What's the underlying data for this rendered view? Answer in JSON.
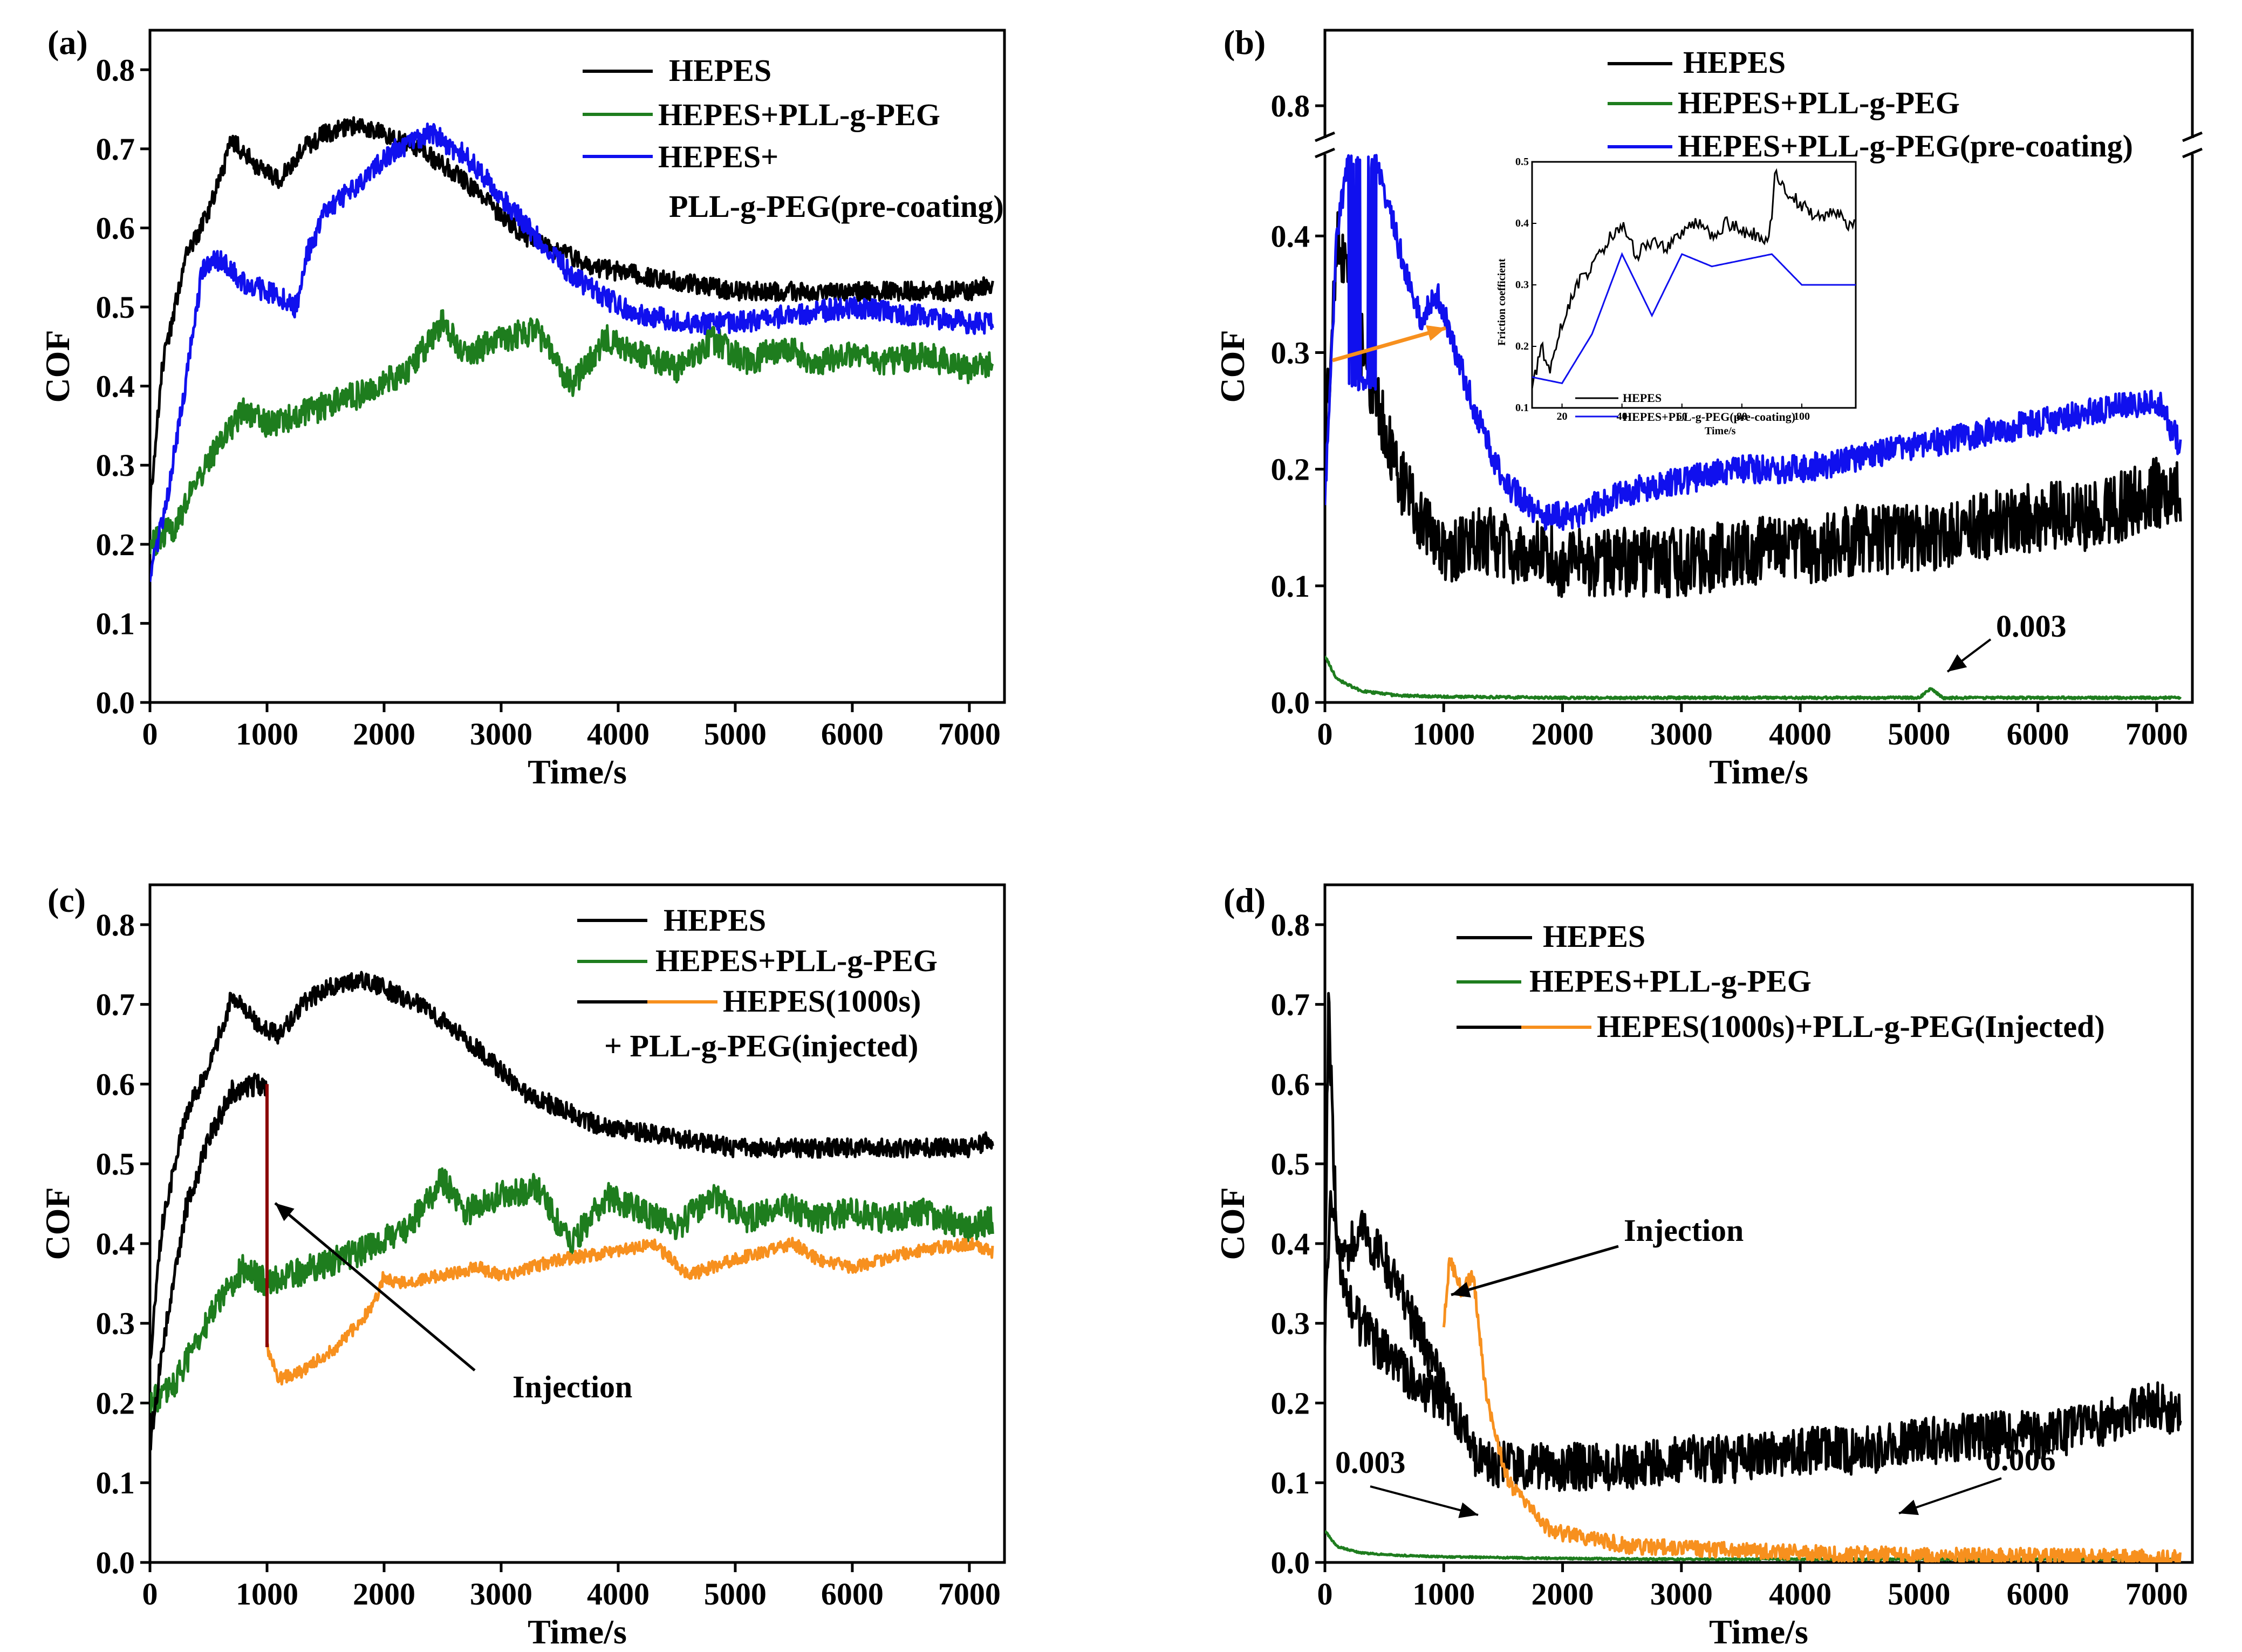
{
  "figure": {
    "colors": {
      "HEPES": "#000000",
      "PLL": "#1e7d1e",
      "precoat": "#1010ee",
      "injected": "#f7901e",
      "inj_marker": "#8b0000",
      "inset_arrow": "#f7901e"
    }
  },
  "chart_data": [
    {
      "panel": "(a)",
      "type": "line",
      "xlabel": "Time/s",
      "ylabel": "COF",
      "xlim": [
        0,
        7300
      ],
      "ylim": [
        0,
        0.85
      ],
      "xticks": [
        0,
        1000,
        2000,
        3000,
        4000,
        5000,
        6000,
        7000
      ],
      "yticks": [
        0.0,
        0.1,
        0.2,
        0.3,
        0.4,
        0.5,
        0.6,
        0.7,
        0.8
      ],
      "legend": [
        "HEPES",
        "HEPES+PLL-g-PEG",
        "HEPES+",
        "PLL-g-PEG(pre-coating)"
      ],
      "series": [
        {
          "name": "HEPES",
          "color": "#000000",
          "noise": 0.012,
          "seed": 1,
          "x": [
            0,
            100,
            300,
            500,
            700,
            900,
            1100,
            1300,
            1500,
            1800,
            2000,
            2300,
            2600,
            2900,
            3200,
            3500,
            3800,
            4200,
            4600,
            5000,
            5500,
            6000,
            6500,
            7000,
            7200
          ],
          "y": [
            0.25,
            0.42,
            0.56,
            0.62,
            0.71,
            0.68,
            0.66,
            0.7,
            0.72,
            0.73,
            0.72,
            0.7,
            0.67,
            0.63,
            0.59,
            0.57,
            0.55,
            0.54,
            0.53,
            0.52,
            0.52,
            0.52,
            0.52,
            0.52,
            0.53
          ]
        },
        {
          "name": "HEPES+PLL-g-PEG",
          "color": "#1e7d1e",
          "noise": 0.018,
          "seed": 2,
          "x": [
            0,
            200,
            400,
            600,
            800,
            1000,
            1400,
            1800,
            2200,
            2500,
            2700,
            3000,
            3300,
            3600,
            3900,
            4200,
            4500,
            4800,
            5100,
            5400,
            5700,
            6000,
            6300,
            6600,
            7000,
            7200
          ],
          "y": [
            0.2,
            0.22,
            0.28,
            0.33,
            0.37,
            0.35,
            0.37,
            0.39,
            0.42,
            0.48,
            0.44,
            0.46,
            0.47,
            0.4,
            0.46,
            0.44,
            0.42,
            0.46,
            0.43,
            0.45,
            0.43,
            0.44,
            0.43,
            0.44,
            0.42,
            0.43
          ]
        },
        {
          "name": "HEPES+PLL-g-PEG(pre-coating)",
          "color": "#1010ee",
          "noise": 0.014,
          "seed": 3,
          "x": [
            0,
            150,
            300,
            450,
            600,
            800,
            1000,
            1250,
            1350,
            1500,
            1800,
            2100,
            2400,
            2700,
            3000,
            3300,
            3600,
            3900,
            4200,
            4600,
            5000,
            5500,
            6000,
            6500,
            7000,
            7200
          ],
          "y": [
            0.16,
            0.26,
            0.4,
            0.55,
            0.56,
            0.53,
            0.52,
            0.5,
            0.57,
            0.62,
            0.66,
            0.7,
            0.72,
            0.69,
            0.64,
            0.59,
            0.54,
            0.51,
            0.49,
            0.48,
            0.48,
            0.49,
            0.5,
            0.49,
            0.48,
            0.48
          ]
        }
      ]
    },
    {
      "panel": "(b)",
      "type": "line",
      "xlabel": "Time/s",
      "ylabel": "COF",
      "xlim": [
        0,
        7300
      ],
      "ylim": [
        0,
        0.85
      ],
      "axis_break": [
        0.47,
        0.77
      ],
      "xticks": [
        0,
        1000,
        2000,
        3000,
        4000,
        5000,
        6000,
        7000
      ],
      "yticks": [
        0.0,
        0.1,
        0.2,
        0.3,
        0.4,
        0.8
      ],
      "legend": [
        "HEPES",
        "HEPES+PLL-g-PEG",
        "HEPES+PLL-g-PEG(pre-coating)"
      ],
      "annotation": "0.003",
      "series": [
        {
          "name": "HEPES",
          "color": "#000000",
          "noise": 0.03,
          "seed": 4,
          "x": [
            0,
            100,
            200,
            400,
            600,
            800,
            1000,
            1300,
            1600,
            2000,
            2500,
            3000,
            3500,
            4000,
            4500,
            5000,
            5500,
            6000,
            6500,
            7000,
            7200
          ],
          "y": [
            0.22,
            0.4,
            0.35,
            0.27,
            0.2,
            0.16,
            0.13,
            0.14,
            0.13,
            0.12,
            0.12,
            0.12,
            0.13,
            0.13,
            0.14,
            0.14,
            0.15,
            0.16,
            0.16,
            0.18,
            0.18
          ]
        },
        {
          "name": "HEPES+PLL-g-PEG",
          "color": "#1e7d1e",
          "noise": 0.001,
          "seed": 5,
          "x": [
            0,
            100,
            300,
            600,
            1000,
            2000,
            3000,
            4000,
            5000,
            5100,
            5200,
            6000,
            7000,
            7200
          ],
          "y": [
            0.04,
            0.02,
            0.01,
            0.006,
            0.005,
            0.004,
            0.004,
            0.004,
            0.004,
            0.012,
            0.004,
            0.004,
            0.004,
            0.004
          ]
        },
        {
          "name": "HEPES+PLL-g-PEG(pre-coating)",
          "color": "#1010ee",
          "noise": 0.012,
          "seed": 6,
          "x": [
            0,
            100,
            200,
            350,
            500,
            650,
            800,
            950,
            1100,
            1300,
            1500,
            1800,
            2100,
            2500,
            3000,
            3500,
            4000,
            4500,
            5000,
            5500,
            6000,
            6500,
            7000,
            7200
          ],
          "y": [
            0.17,
            0.4,
            0.47,
            0.48,
            0.44,
            0.38,
            0.33,
            0.35,
            0.3,
            0.24,
            0.19,
            0.16,
            0.16,
            0.18,
            0.19,
            0.2,
            0.2,
            0.21,
            0.22,
            0.23,
            0.24,
            0.25,
            0.26,
            0.22
          ]
        }
      ],
      "inset": {
        "ylabel": "Friction coefficient",
        "xlabel": "Time/s",
        "xlim": [
          10,
          118
        ],
        "ylim": [
          0.1,
          0.5
        ],
        "xticks": [
          20,
          40,
          60,
          80,
          100
        ],
        "yticks": [
          0.1,
          0.2,
          0.3,
          0.4,
          0.5
        ],
        "legend": [
          "HEPES",
          "HEPES+PLL-g-PEG(pre-coating)"
        ],
        "series": [
          {
            "name": "HEPES",
            "color": "#000000",
            "noise": 0.012,
            "seed": 7,
            "x": [
              10,
              13,
              16,
              20,
              25,
              30,
              35,
              40,
              45,
              50,
              55,
              60,
              65,
              70,
              75,
              80,
              85,
              88,
              90,
              91,
              95,
              100,
              105,
              110,
              115,
              118
            ],
            "y": [
              0.13,
              0.2,
              0.16,
              0.24,
              0.3,
              0.33,
              0.37,
              0.4,
              0.35,
              0.37,
              0.36,
              0.39,
              0.4,
              0.38,
              0.4,
              0.39,
              0.38,
              0.37,
              0.4,
              0.49,
              0.45,
              0.43,
              0.41,
              0.42,
              0.4,
              0.4
            ]
          },
          {
            "name": "HEPES+PLL-g-PEG(pre-coating)",
            "color": "#1010ee",
            "noise": 0,
            "seed": 8,
            "x": [
              10,
              20,
              30,
              40,
              50,
              60,
              70,
              80,
              90,
              100,
              110,
              118
            ],
            "y": [
              0.15,
              0.14,
              0.22,
              0.35,
              0.25,
              0.35,
              0.33,
              0.34,
              0.35,
              0.3,
              0.3,
              0.3
            ]
          }
        ]
      }
    },
    {
      "panel": "(c)",
      "type": "line",
      "xlabel": "Time/s",
      "ylabel": "COF",
      "xlim": [
        0,
        7300
      ],
      "ylim": [
        0,
        0.85
      ],
      "xticks": [
        0,
        1000,
        2000,
        3000,
        4000,
        5000,
        6000,
        7000
      ],
      "yticks": [
        0.0,
        0.1,
        0.2,
        0.3,
        0.4,
        0.5,
        0.6,
        0.7,
        0.8
      ],
      "legend": [
        "HEPES",
        "HEPES+PLL-g-PEG",
        "HEPES(1000s)",
        "+ PLL-g-PEG(injected)"
      ],
      "annotation": "Injection",
      "series": [
        {
          "name": "HEPES",
          "color": "#000000",
          "noise": 0.012,
          "seed": 9,
          "x": [
            0,
            100,
            300,
            500,
            700,
            900,
            1100,
            1300,
            1500,
            1800,
            2000,
            2300,
            2600,
            2900,
            3200,
            3500,
            3800,
            4200,
            4600,
            5000,
            5500,
            6000,
            6500,
            7000,
            7200
          ],
          "y": [
            0.25,
            0.42,
            0.56,
            0.62,
            0.71,
            0.68,
            0.66,
            0.7,
            0.72,
            0.73,
            0.72,
            0.7,
            0.67,
            0.63,
            0.59,
            0.57,
            0.55,
            0.54,
            0.53,
            0.52,
            0.52,
            0.52,
            0.52,
            0.52,
            0.53
          ]
        },
        {
          "name": "HEPES+PLL-g-PEG",
          "color": "#1e7d1e",
          "noise": 0.018,
          "seed": 10,
          "x": [
            0,
            200,
            400,
            600,
            800,
            1000,
            1400,
            1800,
            2200,
            2500,
            2700,
            3000,
            3300,
            3600,
            3900,
            4200,
            4500,
            4800,
            5100,
            5400,
            5700,
            6000,
            6300,
            6600,
            7000,
            7200
          ],
          "y": [
            0.2,
            0.22,
            0.28,
            0.33,
            0.37,
            0.35,
            0.37,
            0.39,
            0.42,
            0.48,
            0.44,
            0.46,
            0.47,
            0.4,
            0.46,
            0.44,
            0.42,
            0.46,
            0.43,
            0.45,
            0.43,
            0.44,
            0.43,
            0.44,
            0.42,
            0.43
          ]
        },
        {
          "name": "HEPES(1000s)",
          "color": "#000000",
          "noise": 0.015,
          "seed": 11,
          "x": [
            0,
            100,
            200,
            300,
            500,
            700,
            900,
            1000
          ],
          "y": [
            0.15,
            0.26,
            0.35,
            0.44,
            0.53,
            0.59,
            0.6,
            0.6
          ]
        },
        {
          "name": "PLL-g-PEG(injected)",
          "color": "#f7901e",
          "noise": 0.008,
          "seed": 12,
          "x": [
            1000,
            1100,
            1300,
            1600,
            1900,
            2000,
            2100,
            2500,
            2800,
            3000,
            3500,
            4000,
            4300,
            4600,
            5000,
            5500,
            5700,
            6000,
            6500,
            7000,
            7200
          ],
          "y": [
            0.27,
            0.23,
            0.24,
            0.27,
            0.32,
            0.36,
            0.35,
            0.36,
            0.37,
            0.36,
            0.38,
            0.39,
            0.4,
            0.36,
            0.38,
            0.4,
            0.38,
            0.37,
            0.39,
            0.4,
            0.39
          ]
        }
      ]
    },
    {
      "panel": "(d)",
      "type": "line",
      "xlabel": "Time/s",
      "ylabel": "COF",
      "xlim": [
        0,
        7300
      ],
      "ylim": [
        0,
        0.85
      ],
      "xticks": [
        0,
        1000,
        2000,
        3000,
        4000,
        5000,
        6000,
        7000
      ],
      "yticks": [
        0.0,
        0.1,
        0.2,
        0.3,
        0.4,
        0.5,
        0.6,
        0.7,
        0.8
      ],
      "legend": [
        "HEPES",
        "HEPES+PLL-g-PEG",
        "HEPES(1000s)+PLL-g-PEG(Injected)"
      ],
      "annotations": [
        "Injection",
        "0.003",
        "0.006"
      ],
      "series": [
        {
          "name": "HEPES",
          "color": "#000000",
          "noise": 0.03,
          "seed": 13,
          "x": [
            0,
            50,
            150,
            300,
            500,
            700,
            900,
            1100,
            1300,
            1600,
            2000,
            2500,
            3000,
            3500,
            4000,
            4500,
            5000,
            5500,
            6000,
            6500,
            7000,
            7200
          ],
          "y": [
            0.3,
            0.45,
            0.38,
            0.42,
            0.38,
            0.32,
            0.25,
            0.18,
            0.13,
            0.12,
            0.12,
            0.12,
            0.13,
            0.13,
            0.14,
            0.14,
            0.15,
            0.16,
            0.16,
            0.17,
            0.2,
            0.18
          ]
        },
        {
          "name": "HEPES+PLL-g-PEG",
          "color": "#1e7d1e",
          "noise": 0.001,
          "seed": 14,
          "x": [
            0,
            100,
            300,
            600,
            1000,
            2000,
            3000,
            4000,
            5000,
            6000,
            7000,
            7200
          ],
          "y": [
            0.04,
            0.02,
            0.012,
            0.009,
            0.007,
            0.005,
            0.004,
            0.004,
            0.004,
            0.004,
            0.004,
            0.004
          ]
        },
        {
          "name": "HEPES(1000s)",
          "color": "#000000",
          "noise": 0.03,
          "seed": 15,
          "x": [
            0,
            30,
            100,
            200,
            400,
            600,
            800,
            1000
          ],
          "y": [
            0.35,
            0.7,
            0.4,
            0.32,
            0.28,
            0.25,
            0.22,
            0.2
          ]
        },
        {
          "name": "PLL-g-PEG(Injected)",
          "color": "#f7901e",
          "noise": 0.01,
          "seed": 16,
          "x": [
            1000,
            1050,
            1150,
            1250,
            1350,
            1450,
            1550,
            1700,
            1900,
            2200,
            2600,
            3000,
            3500,
            4000,
            5000,
            6000,
            7000,
            7200
          ],
          "y": [
            0.3,
            0.38,
            0.34,
            0.36,
            0.22,
            0.15,
            0.1,
            0.07,
            0.04,
            0.03,
            0.02,
            0.018,
            0.015,
            0.012,
            0.009,
            0.008,
            0.006,
            0.006
          ]
        }
      ]
    }
  ]
}
